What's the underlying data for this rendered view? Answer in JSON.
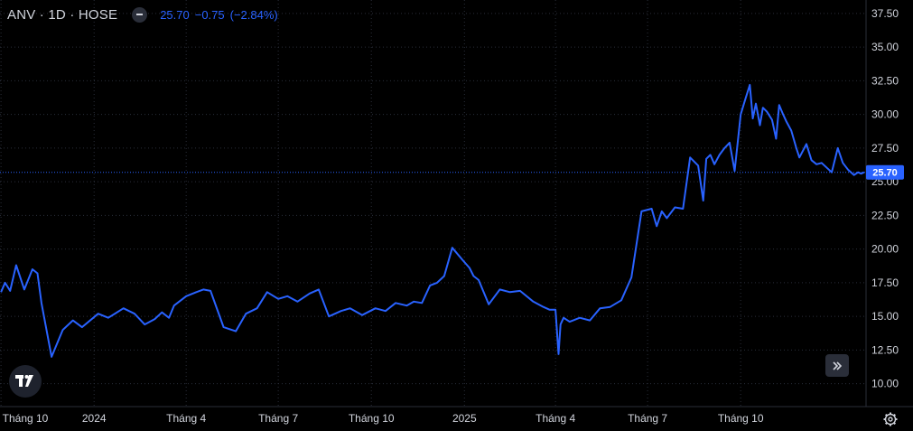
{
  "legend": {
    "symbol": "ANV · 1D · HOSE",
    "last": "25.70",
    "change": "−0.75",
    "change_pct": "(−2.84%)"
  },
  "price_tag": "25.70",
  "colors": {
    "background": "#000000",
    "line": "#2962ff",
    "grid": "#2a2e39",
    "axis_text": "#d1d4dc",
    "price_tag_bg": "#2962ff"
  },
  "icons": {
    "logo": "tradingview-logo-icon",
    "goto": "double-chevron-right-icon",
    "settings": "gear-icon",
    "visibility": "eye-toggle-icon"
  },
  "chart_data": {
    "type": "line",
    "series": [
      {
        "x": [
          "2023-10-01",
          "2023-10-05",
          "2023-10-10",
          "2023-10-16",
          "2023-10-24",
          "2023-11-01",
          "2023-11-06",
          "2023-11-10",
          "2023-11-20",
          "2023-12-01",
          "2023-12-11",
          "2023-12-20",
          "2024-01-05",
          "2024-01-15",
          "2024-01-30",
          "2024-02-10",
          "2024-02-20",
          "2024-03-01",
          "2024-03-08",
          "2024-03-15",
          "2024-03-20",
          "2024-04-01",
          "2024-04-11",
          "2024-04-18",
          "2024-04-25",
          "2024-05-08",
          "2024-05-20",
          "2024-05-30",
          "2024-06-10",
          "2024-06-20",
          "2024-07-01",
          "2024-07-10",
          "2024-07-20",
          "2024-08-01",
          "2024-08-10",
          "2024-08-20",
          "2024-09-01",
          "2024-09-10",
          "2024-09-22",
          "2024-10-05",
          "2024-10-15",
          "2024-10-25",
          "2024-11-05",
          "2024-11-12",
          "2024-11-20",
          "2024-11-28",
          "2024-12-05",
          "2024-12-12",
          "2024-12-20",
          "2024-12-30",
          "2025-01-06",
          "2025-01-10",
          "2025-01-15",
          "2025-01-25",
          "2025-02-05",
          "2025-02-15",
          "2025-02-25",
          "2025-03-10",
          "2025-03-20",
          "2025-03-26",
          "2025-04-01",
          "2025-04-04",
          "2025-04-06",
          "2025-04-09",
          "2025-04-15",
          "2025-04-25",
          "2025-05-05",
          "2025-05-15",
          "2025-05-25",
          "2025-06-05",
          "2025-06-15",
          "2025-06-25",
          "2025-07-05",
          "2025-07-10",
          "2025-07-15",
          "2025-07-20",
          "2025-07-28",
          "2025-08-05",
          "2025-08-12",
          "2025-08-20",
          "2025-08-25",
          "2025-08-28",
          "2025-09-01",
          "2025-09-05",
          "2025-09-10",
          "2025-09-15",
          "2025-09-20",
          "2025-09-25",
          "2025-10-01",
          "2025-10-05",
          "2025-10-10",
          "2025-10-13",
          "2025-10-16",
          "2025-10-20",
          "2025-10-23",
          "2025-10-27",
          "2025-11-01",
          "2025-11-05",
          "2025-11-08",
          "2025-11-12",
          "2025-11-15",
          "2025-11-20",
          "2025-11-25",
          "2025-11-28",
          "2025-12-05",
          "2025-12-10",
          "2025-12-15",
          "2025-12-20",
          "2025-12-30",
          "2026-01-05",
          "2026-01-10",
          "2026-01-15",
          "2026-01-21",
          "2026-01-25",
          "2026-01-28",
          "2026-01-31"
        ],
        "values": [
          16.8,
          17.5,
          16.9,
          18.8,
          17.0,
          18.5,
          18.2,
          16.0,
          12.0,
          14.0,
          14.7,
          14.2,
          15.2,
          14.9,
          15.6,
          15.2,
          14.4,
          14.8,
          15.3,
          14.9,
          15.8,
          16.5,
          16.8,
          17.0,
          16.9,
          14.2,
          13.9,
          15.2,
          15.6,
          16.8,
          16.3,
          16.5,
          16.1,
          16.7,
          17.0,
          15.0,
          15.4,
          15.6,
          15.1,
          15.6,
          15.4,
          16.0,
          15.8,
          16.1,
          16.0,
          17.3,
          17.5,
          18.0,
          20.1,
          19.2,
          18.6,
          18.0,
          17.7,
          15.9,
          17.0,
          16.8,
          16.9,
          16.1,
          15.7,
          15.5,
          15.5,
          12.2,
          14.4,
          14.9,
          14.6,
          14.9,
          14.7,
          15.6,
          15.7,
          16.2,
          17.9,
          22.8,
          23.0,
          21.7,
          22.8,
          22.3,
          23.1,
          23.0,
          26.8,
          26.2,
          23.6,
          26.7,
          27.0,
          26.3,
          27.0,
          27.5,
          27.9,
          25.8,
          30.0,
          31.0,
          32.2,
          29.7,
          30.8,
          29.2,
          30.5,
          30.2,
          29.6,
          28.2,
          30.7,
          30.0,
          29.5,
          28.8,
          27.5,
          26.8,
          27.8,
          26.6,
          26.3,
          26.4,
          25.7,
          27.5,
          26.4,
          25.9,
          25.5,
          25.7,
          25.6,
          25.7
        ]
      }
    ],
    "xlabel": "",
    "ylabel": "",
    "ylim": [
      8.3,
      38.5
    ],
    "xlim": [
      "2023-09-30",
      "2026-02-01"
    ],
    "x_tick_labels": [
      "Tháng 10",
      "2024",
      "Tháng 4",
      "Tháng 7",
      "Tháng 10",
      "2025",
      "Tháng 4",
      "Tháng 7",
      "Tháng 10"
    ],
    "x_tick_dates": [
      "2023-10-01",
      "2024-01-01",
      "2024-04-01",
      "2024-07-01",
      "2024-10-01",
      "2025-01-01",
      "2025-04-01",
      "2025-07-01",
      "2025-10-01"
    ],
    "y_ticks": [
      10.0,
      12.5,
      15.0,
      17.5,
      20.0,
      22.5,
      25.0,
      27.5,
      30.0,
      32.5,
      35.0,
      37.5
    ],
    "y_tick_labels": [
      "10.00",
      "12.50",
      "15.00",
      "17.50",
      "20.00",
      "22.50",
      "25.00",
      "27.50",
      "30.00",
      "32.50",
      "35.00",
      "37.50"
    ],
    "last_price": 25.7,
    "grid": true,
    "legend": "top-left"
  }
}
